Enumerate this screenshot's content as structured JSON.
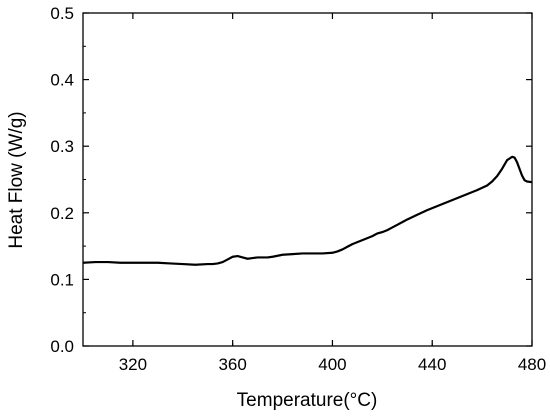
{
  "chart_data": {
    "type": "line",
    "title": "",
    "xlabel": "Temperature(°C)",
    "ylabel": "Heat Flow (W/g)",
    "xlim": [
      300,
      480
    ],
    "ylim": [
      0.0,
      0.5
    ],
    "grid": false,
    "legend": "none",
    "x_ticks": [
      320,
      360,
      400,
      440,
      480
    ],
    "y_ticks": [
      "0.0",
      "0.1",
      "0.2",
      "0.3",
      "0.4",
      "0.5"
    ],
    "series": [
      {
        "color": "#000000",
        "x": [
          300,
          305,
          310,
          315,
          320,
          325,
          330,
          335,
          340,
          345,
          350,
          352,
          354,
          356,
          358,
          360,
          362,
          364,
          366,
          368,
          370,
          372,
          374,
          376,
          380,
          384,
          388,
          392,
          396,
          400,
          402,
          404,
          406,
          408,
          410,
          412,
          414,
          416,
          418,
          420,
          422,
          424,
          426,
          428,
          430,
          434,
          438,
          442,
          446,
          450,
          454,
          458,
          462,
          464,
          466,
          468,
          470,
          472,
          473,
          474,
          475,
          476,
          477,
          478,
          480
        ],
        "y": [
          0.125,
          0.126,
          0.126,
          0.125,
          0.125,
          0.125,
          0.125,
          0.124,
          0.123,
          0.122,
          0.123,
          0.123,
          0.124,
          0.126,
          0.13,
          0.134,
          0.135,
          0.133,
          0.131,
          0.132,
          0.133,
          0.133,
          0.133,
          0.134,
          0.137,
          0.138,
          0.139,
          0.139,
          0.139,
          0.14,
          0.142,
          0.145,
          0.149,
          0.153,
          0.156,
          0.159,
          0.162,
          0.165,
          0.169,
          0.171,
          0.174,
          0.178,
          0.182,
          0.186,
          0.19,
          0.197,
          0.204,
          0.21,
          0.216,
          0.222,
          0.228,
          0.234,
          0.241,
          0.247,
          0.255,
          0.266,
          0.279,
          0.284,
          0.283,
          0.276,
          0.266,
          0.256,
          0.249,
          0.247,
          0.246
        ]
      }
    ]
  }
}
